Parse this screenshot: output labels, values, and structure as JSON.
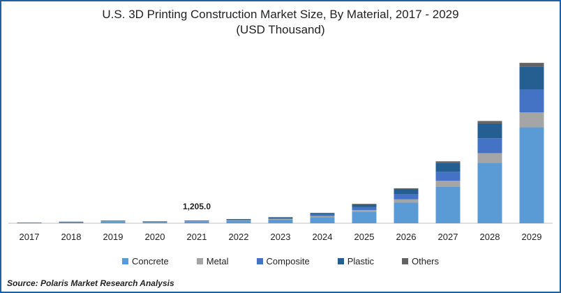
{
  "chart_data": {
    "type": "bar",
    "stacked": true,
    "title": "U.S. 3D Printing Construction Market Size, By Material, 2017 - 2029",
    "subtitle": "(USD Thousand)",
    "categories": [
      "2017",
      "2018",
      "2019",
      "2020",
      "2021",
      "2022",
      "2023",
      "2024",
      "2025",
      "2026",
      "2027",
      "2028",
      "2029"
    ],
    "series": [
      {
        "name": "Concrete",
        "color": "#5b9bd5",
        "values": [
          200,
          400,
          700,
          500,
          750,
          1100,
          1600,
          2700,
          5000,
          9000,
          16000,
          26500,
          42000
        ]
      },
      {
        "name": "Metal",
        "color": "#a5a5a5",
        "values": [
          30,
          60,
          110,
          80,
          110,
          170,
          250,
          420,
          800,
          1450,
          2550,
          4200,
          6500
        ]
      },
      {
        "name": "Composite",
        "color": "#4472c4",
        "values": [
          40,
          90,
          160,
          110,
          160,
          250,
          380,
          650,
          1250,
          2250,
          3950,
          6500,
          10000
        ]
      },
      {
        "name": "Plastic",
        "color": "#255e91",
        "values": [
          40,
          90,
          160,
          110,
          160,
          250,
          380,
          650,
          1250,
          2250,
          3950,
          6500,
          10000
        ]
      },
      {
        "name": "Others",
        "color": "#636363",
        "values": [
          10,
          20,
          30,
          20,
          25,
          40,
          60,
          100,
          200,
          350,
          650,
          1050,
          1700
        ]
      }
    ],
    "annotations": [
      {
        "category": "2021",
        "text": "1,205.0"
      }
    ],
    "ylim": [
      0,
      80000
    ],
    "grid": false,
    "legend_position": "bottom"
  },
  "source": "Source: Polaris  Market Research Analysis"
}
